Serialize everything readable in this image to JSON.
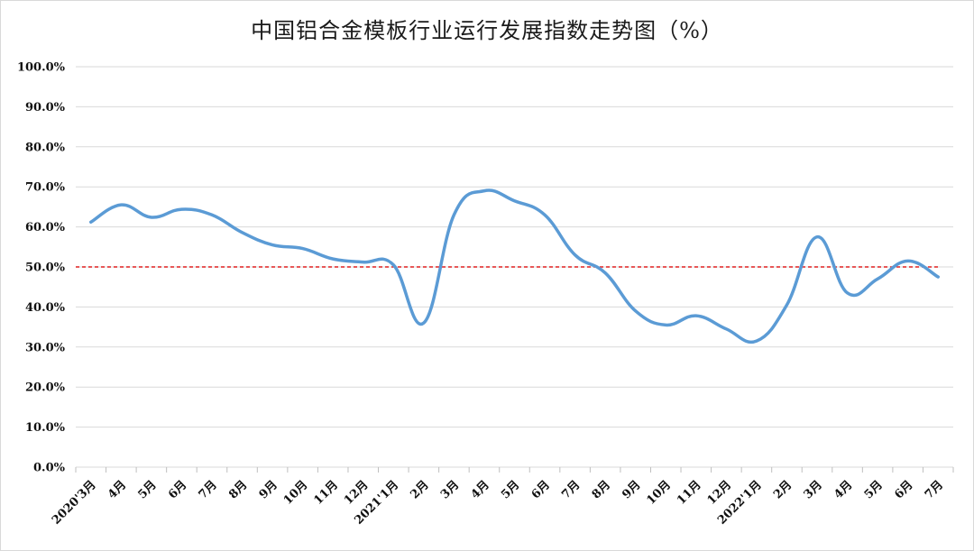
{
  "chart_data": {
    "type": "line",
    "title": "中国铝合金模板行业运行发展指数走势图（%）",
    "xlabel": "",
    "ylabel": "",
    "ylim": [
      0,
      100
    ],
    "yticks": [
      "0.0%",
      "10.0%",
      "20.0%",
      "30.0%",
      "40.0%",
      "50.0%",
      "60.0%",
      "70.0%",
      "80.0%",
      "90.0%",
      "100.0%"
    ],
    "categories": [
      "2020'3月",
      "4月",
      "5月",
      "6月",
      "7月",
      "8月",
      "9月",
      "10月",
      "11月",
      "12月",
      "2021'1月",
      "2月",
      "3月",
      "4月",
      "5月",
      "6月",
      "7月",
      "8月",
      "9月",
      "10月",
      "11月",
      "12月",
      "2022'1月",
      "2月",
      "3月",
      "4月",
      "5月",
      "6月",
      "7月"
    ],
    "series": [
      {
        "values": [
          61.2,
          65.5,
          62.4,
          64.4,
          63.0,
          58.6,
          55.5,
          54.6,
          52.0,
          51.2,
          50.5,
          36.0,
          63.0,
          69.0,
          66.5,
          63.0,
          53.0,
          48.5,
          39.0,
          35.5,
          37.8,
          34.5,
          31.5,
          40.5,
          57.5,
          43.5,
          47.0,
          51.5,
          47.5
        ],
        "color": "#5b9bd5"
      }
    ],
    "reference_line": {
      "value": 50,
      "color": "#e02020"
    },
    "grid": true
  },
  "colors": {
    "line": "#5b9bd5",
    "reference": "#e02020",
    "grid": "#d9d9d9"
  }
}
